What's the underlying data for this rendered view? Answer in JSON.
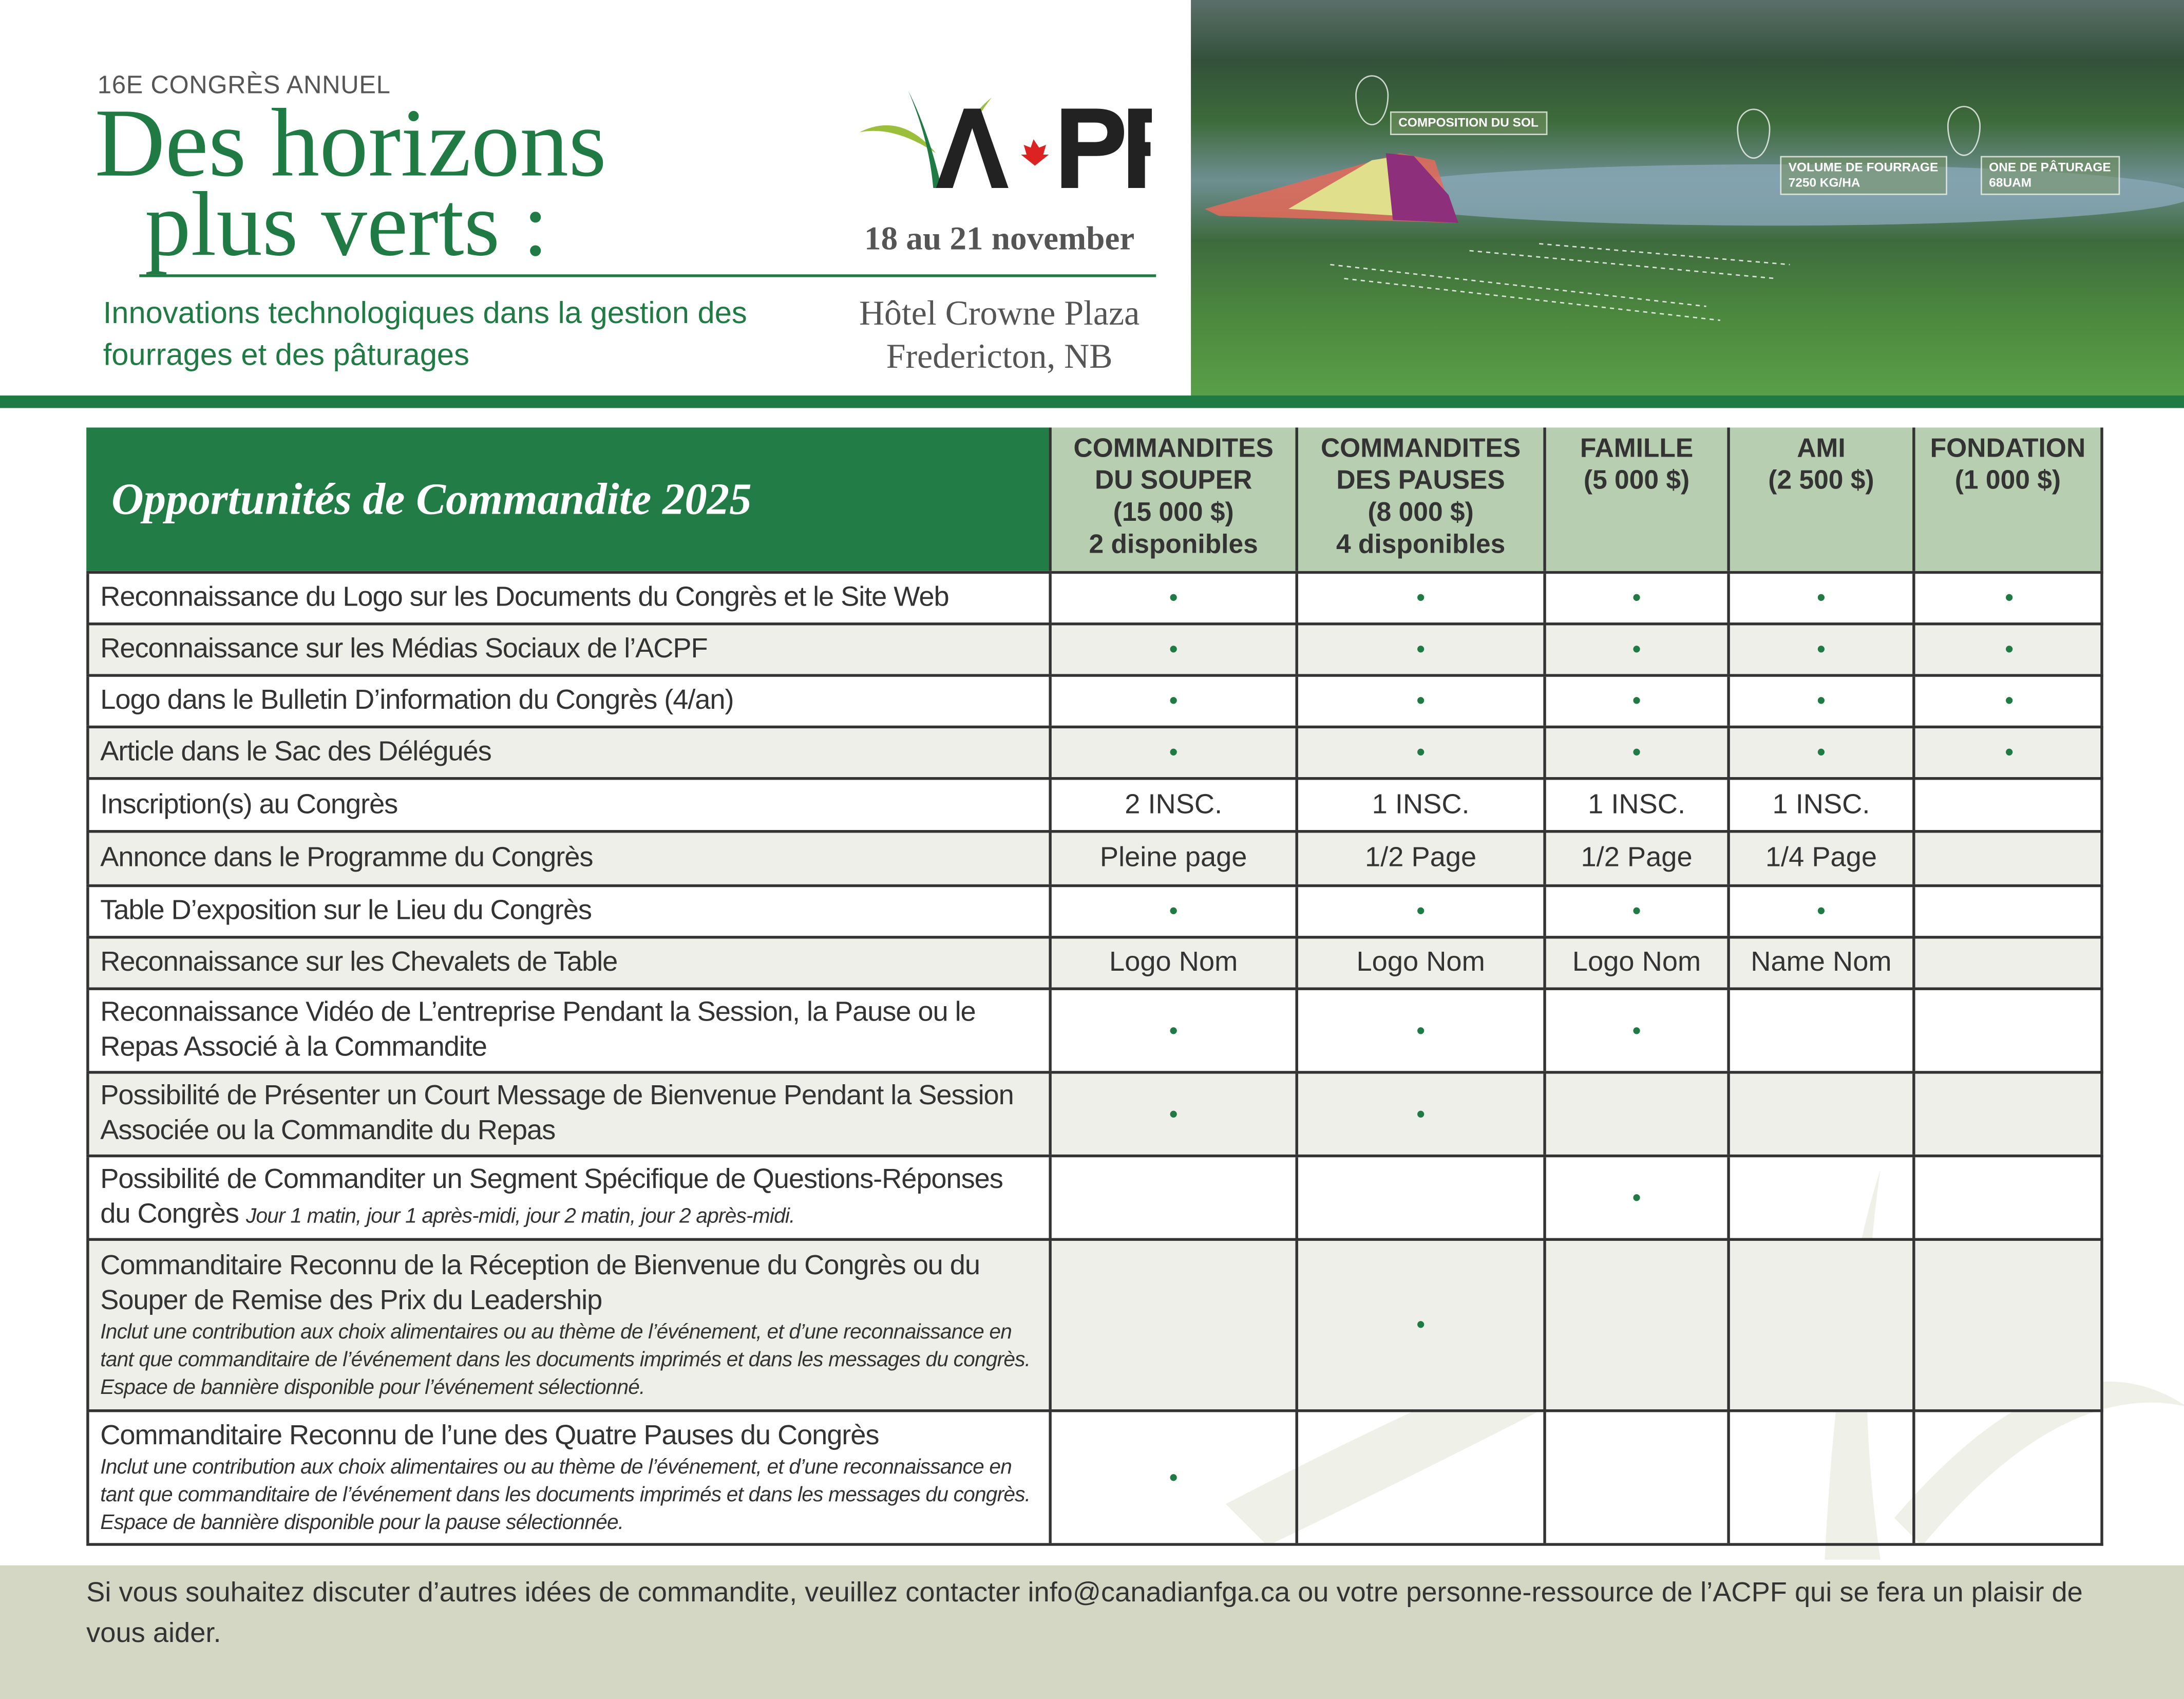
{
  "header": {
    "kicker": "16E CONGRÈS ANNUEL",
    "title_line1": "Des horizons",
    "title_line2": "plus verts :",
    "subtitle": "Innovations technologiques dans la gestion des fourrages et des pâturages",
    "logo_text": "ACPF",
    "dates": "18 au 21 november",
    "venue_line1": "Hôtel Crowne Plaza",
    "venue_line2": "Fredericton, NB"
  },
  "photo": {
    "labels": [
      {
        "line1": "COMPOSITION DU SOL",
        "line2": ""
      },
      {
        "line1": "VOLUME DE FOURRAGE",
        "line2": "7250 KG/HA"
      },
      {
        "line1": "ONE DE PÂTURAGE",
        "line2": "68UAM"
      }
    ]
  },
  "table": {
    "title": "Opportunités de Commandite 2025",
    "columns": [
      "COMMANDITES\nDU SOUPER\n(15 000 $)\n2 disponibles",
      "COMMANDITES\nDES PAUSES\n(8 000 $)\n4 disponibles",
      "FAMILLE\n(5 000 $)",
      "AMI\n(2 500 $)",
      "FONDATION\n(1 000 $)"
    ],
    "rows": [
      {
        "label": "Reconnaissance du Logo sur les Documents du Congrès et le Site Web",
        "note": "",
        "values": [
          "•",
          "•",
          "•",
          "•",
          "•"
        ]
      },
      {
        "label": "Reconnaissance sur les Médias Sociaux de l’ACPF",
        "note": "",
        "values": [
          "•",
          "•",
          "•",
          "•",
          "•"
        ]
      },
      {
        "label": "Logo dans le Bulletin D’information du Congrès (4/an)",
        "note": "",
        "values": [
          "•",
          "•",
          "•",
          "•",
          "•"
        ]
      },
      {
        "label": "Article dans le Sac des Délégués",
        "note": "",
        "values": [
          "•",
          "•",
          "•",
          "•",
          "•"
        ]
      },
      {
        "label": "Inscription(s) au Congrès",
        "note": "",
        "values": [
          "2 INSC.",
          "1 INSC.",
          "1 INSC.",
          "1 INSC.",
          ""
        ]
      },
      {
        "label": "Annonce dans le Programme du Congrès",
        "note": "",
        "values": [
          "Pleine page",
          "1/2 Page",
          "1/2 Page",
          "1/4 Page",
          ""
        ]
      },
      {
        "label": "Table D’exposition sur le Lieu du Congrès",
        "note": "",
        "values": [
          "•",
          "•",
          "•",
          "•",
          ""
        ]
      },
      {
        "label": "Reconnaissance sur les Chevalets de Table",
        "note": "",
        "values": [
          "Logo Nom",
          "Logo Nom",
          "Logo Nom",
          "Name Nom",
          ""
        ]
      },
      {
        "label": "Reconnaissance Vidéo de L’entreprise Pendant la Session, la Pause ou le Repas Associé à la Commandite",
        "note": "",
        "values": [
          "•",
          "•",
          "•",
          "",
          ""
        ]
      },
      {
        "label": "Possibilité de Présenter un Court Message de Bienvenue Pendant la Session Associée ou la Commandite du Repas",
        "note": "",
        "values": [
          "•",
          "•",
          "",
          "",
          ""
        ]
      },
      {
        "label": "Possibilité de Commanditer un Segment Spécifique de Questions-Réponses du Congrès",
        "note": "Jour 1 matin, jour 1 après-midi, jour 2 matin, jour 2 après-midi.",
        "values": [
          "",
          "",
          "•",
          "",
          ""
        ]
      },
      {
        "label": "Commanditaire Reconnu de la Réception de Bienvenue du Congrès ou du Souper de Remise des Prix du Leadership",
        "note": "Inclut une contribution aux choix alimentaires ou au thème de l’événement, et d’une reconnaissance en tant que commanditaire de l’événement dans les documents imprimés et dans les messages du congrès. Espace de bannière disponible pour l’événement sélectionné.",
        "values": [
          "",
          "•",
          "",
          "",
          ""
        ]
      },
      {
        "label": "Commanditaire Reconnu de l’une des Quatre Pauses du Congrès",
        "note": "Inclut une contribution aux choix alimentaires ou au thème de l’événement, et d’une reconnaissance en tant que commanditaire de l’événement dans les documents imprimés et dans les messages du congrès. Espace de bannière disponible pour la pause sélectionnée.",
        "values": [
          "•",
          "",
          "",
          "",
          ""
        ]
      }
    ]
  },
  "footer": {
    "text": "Si vous souhaitez discuter d’autres idées de commandite, veuillez contacter info@canadianfga.ca ou votre personne-ressource de l’ACPF qui se fera un plaisir de vous aider."
  },
  "colors": {
    "brand_green": "#1f7a43",
    "header_col_bg": "#b7ceb0",
    "alt_row": "#efefea",
    "footer_bg": "#d3d7c3"
  }
}
